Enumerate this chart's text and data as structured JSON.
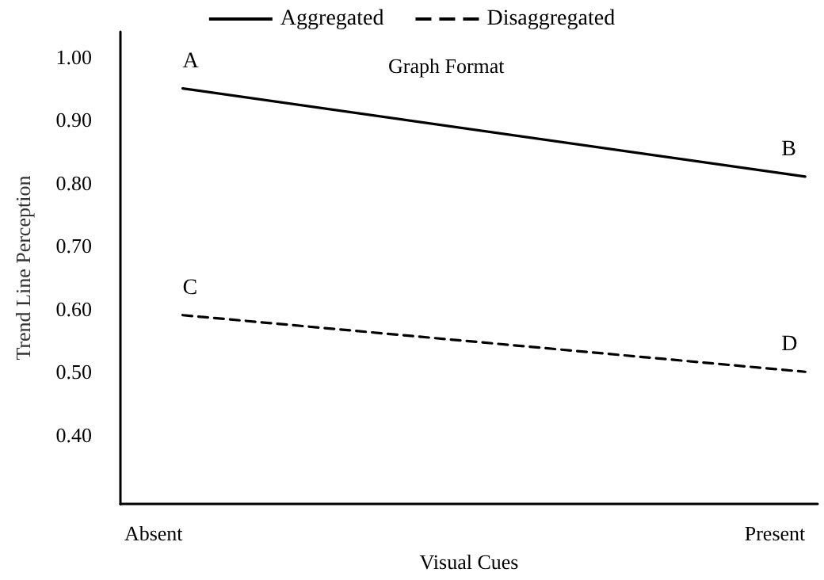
{
  "chart_data": {
    "type": "line",
    "legend_title": "Graph Format",
    "xlabel": "Visual Cues",
    "ylabel": "Trend Line Perception",
    "categories": [
      "Absent",
      "Present"
    ],
    "series": [
      {
        "name": "Aggregated",
        "color": "#000000",
        "values": [
          0.95,
          0.81
        ],
        "line_style": "solid"
      },
      {
        "name": "Disaggregated",
        "color": "#000000",
        "values": [
          0.59,
          0.5
        ],
        "line_style": "dashed"
      }
    ],
    "ylim": [
      0.29,
      1.04
    ],
    "yticks": [
      {
        "value": 0.4,
        "label": "0.40"
      },
      {
        "value": 0.5,
        "label": "0.50"
      },
      {
        "value": 0.6,
        "label": "0.60"
      },
      {
        "value": 0.7,
        "label": "0.70"
      },
      {
        "value": 0.8,
        "label": "0.80"
      },
      {
        "value": 0.9,
        "label": "0.90"
      },
      {
        "value": 1.0,
        "label": "1.00"
      }
    ],
    "annotations": [
      "A",
      {
        "text": "B",
        "x": "Present",
        "y": 0.81
      },
      "C",
      {
        "text": "D",
        "x": "Present",
        "y": 0.5
      }
    ],
    "legend": "top",
    "grid": false,
    "marker": "none"
  }
}
